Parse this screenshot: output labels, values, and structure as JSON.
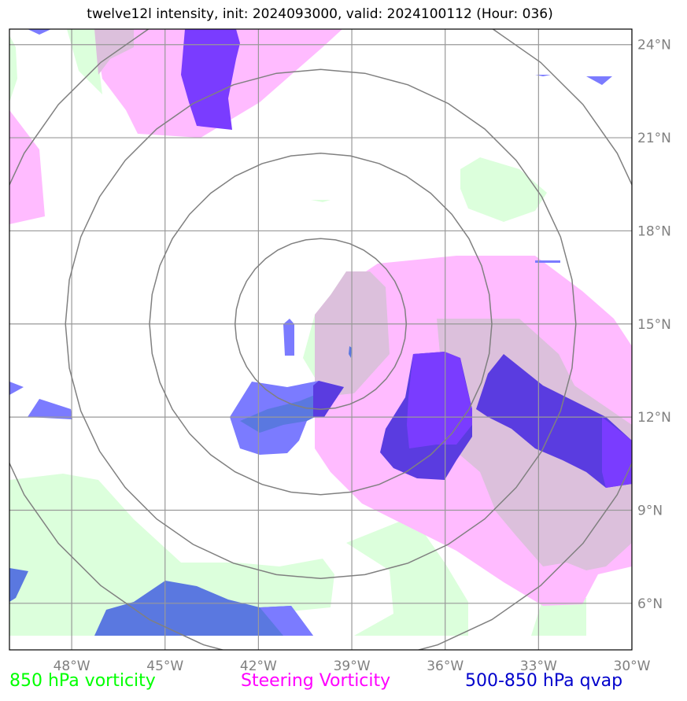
{
  "title": "twelve12l intensity, init: 2024093000, valid: 2024100112 (Hour: 036)",
  "map": {
    "lon_range": [
      -50,
      -30
    ],
    "lat_range": [
      4.5,
      24.5
    ],
    "lon_ticks": [
      {
        "value": -48,
        "label": "48°W"
      },
      {
        "value": -45,
        "label": "45°W"
      },
      {
        "value": -42,
        "label": "42°W"
      },
      {
        "value": -39,
        "label": "39°W"
      },
      {
        "value": -36,
        "label": "36°W"
      },
      {
        "value": -33,
        "label": "33°W"
      },
      {
        "value": -30,
        "label": "30°W"
      }
    ],
    "lat_ticks": [
      {
        "value": 24,
        "label": "24°N"
      },
      {
        "value": 21,
        "label": "21°N"
      },
      {
        "value": 18,
        "label": "18°N"
      },
      {
        "value": 15,
        "label": "15°N"
      },
      {
        "value": 12,
        "label": "12°N"
      },
      {
        "value": 9,
        "label": "9°N"
      },
      {
        "value": 6,
        "label": "6°N"
      }
    ],
    "storm_center": {
      "lon": -40,
      "lat": 15
    },
    "range_rings_deg": [
      2.75,
      5.5,
      8.2,
      11.0
    ]
  },
  "legend": [
    {
      "label": "850 hPa vorticity",
      "color": "#00ff00"
    },
    {
      "label": "Steering Vorticity",
      "color": "#ff00ff"
    },
    {
      "label": "500-850 hPa qvap",
      "color": "#0000cc"
    }
  ],
  "colors": {
    "vort850": "#dcffdc",
    "steering": "#ffbbff",
    "overlap": "#dcc0dc",
    "qvap_light": "#7b7bff",
    "qvap_dark": "#7a3cff",
    "qvap_deep": "#5a3ce0",
    "qvap_blue": "#5a78e0",
    "grid": "#999999",
    "ring": "#808080"
  }
}
